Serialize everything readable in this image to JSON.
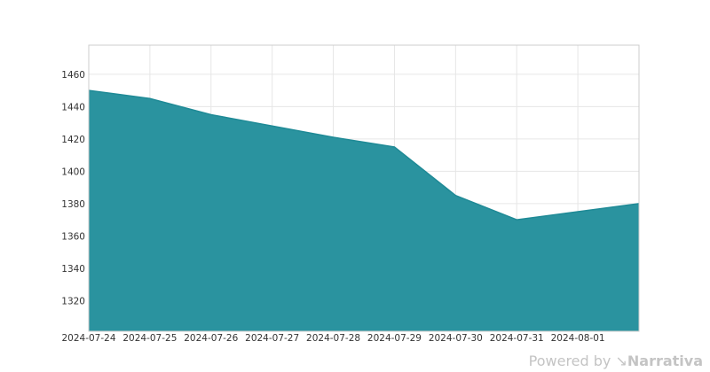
{
  "chart_data": {
    "type": "area",
    "title": "",
    "xlabel": "",
    "ylabel": "",
    "x": [
      "2024-07-24",
      "2024-07-25",
      "2024-07-26",
      "2024-07-27",
      "2024-07-28",
      "2024-07-29",
      "2024-07-30",
      "2024-07-31",
      "2024-08-01",
      "2024-08-02"
    ],
    "series": [
      {
        "values": [
          1450,
          1445,
          1435,
          1428,
          1421,
          1415,
          1385,
          1370,
          1375,
          1380
        ]
      }
    ],
    "x_ticks": [
      "2024-07-24",
      "2024-07-25",
      "2024-07-26",
      "2024-07-27",
      "2024-07-28",
      "2024-07-29",
      "2024-07-30",
      "2024-07-31",
      "2024-08-01"
    ],
    "y_ticks": [
      1320,
      1340,
      1360,
      1380,
      1400,
      1420,
      1440,
      1460
    ],
    "ylim": [
      1301,
      1478
    ],
    "grid": true,
    "legend": "none",
    "colors": {
      "fill": "#2a939f",
      "line": "#1f8a96",
      "grid": "#e6e6e6",
      "frame": "#cccccc"
    }
  },
  "watermark": {
    "prefix": "Powered by",
    "brand": "Narrativa"
  }
}
